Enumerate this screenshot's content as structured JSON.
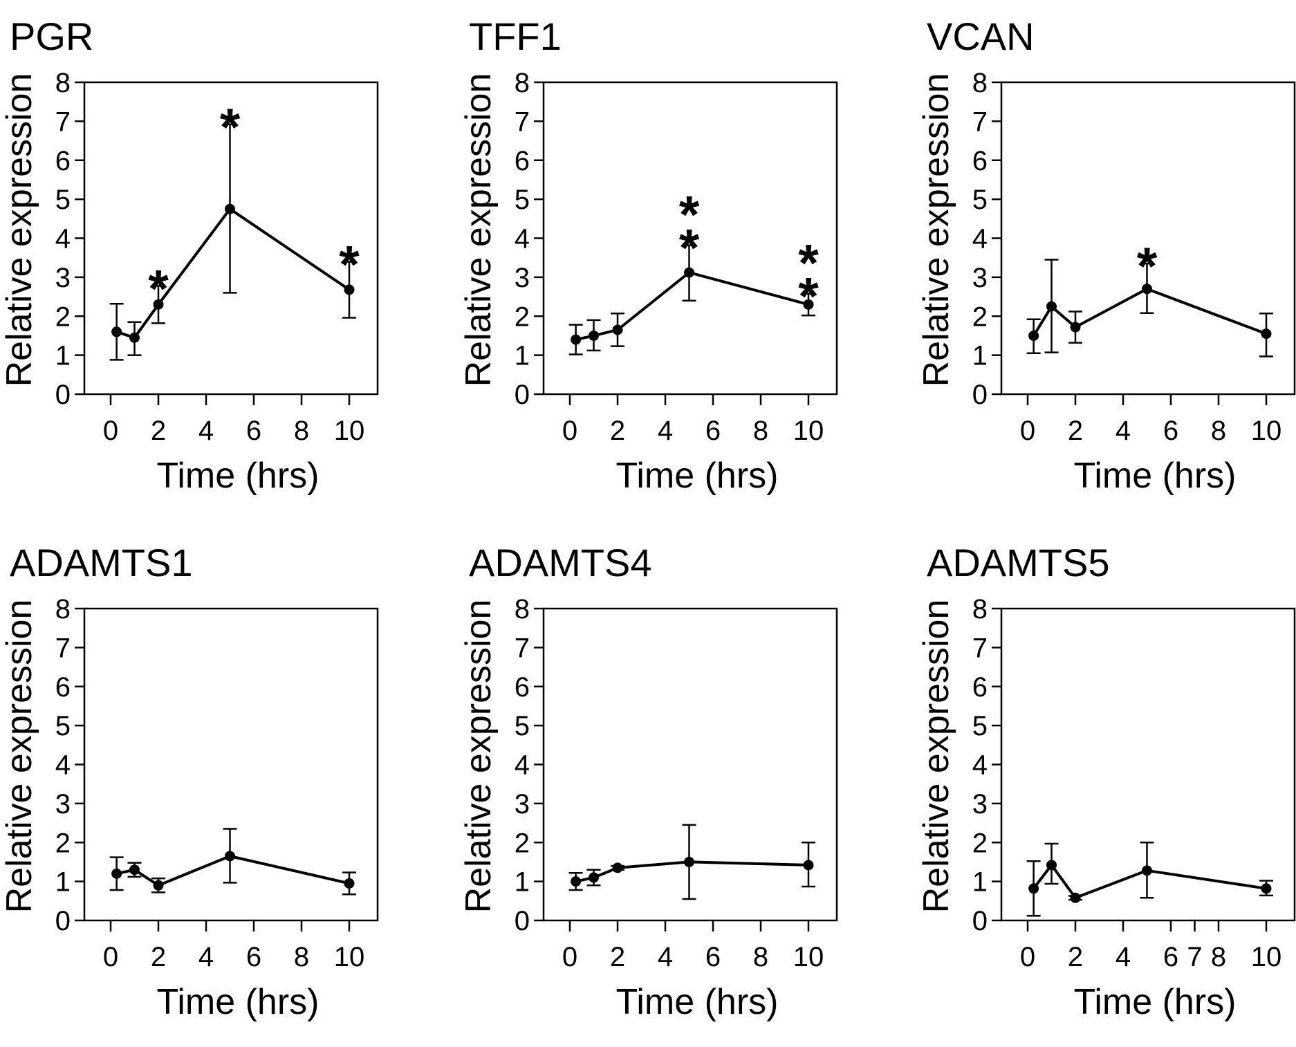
{
  "chart_data": [
    {
      "type": "line",
      "title": "PGR",
      "xlabel": "Time (hrs)",
      "ylabel": "Relative expression",
      "xlim": [
        -1,
        11
      ],
      "ylim": [
        0,
        8
      ],
      "xticks": [
        0,
        2,
        4,
        6,
        8,
        10
      ],
      "xtick_labels": [
        "0",
        "2",
        "4",
        "6",
        "8",
        "10"
      ],
      "yticks": [
        0,
        1,
        2,
        3,
        4,
        5,
        6,
        7,
        8
      ],
      "ytick_labels": [
        "0",
        "1",
        "2",
        "3",
        "4",
        "5",
        "6",
        "7",
        "8"
      ],
      "grid": false,
      "x": [
        0.25,
        1,
        2,
        5,
        10
      ],
      "values": [
        1.6,
        1.45,
        2.3,
        4.75,
        2.68
      ],
      "err_upper": [
        0.72,
        0.4,
        0.48,
        2.17,
        0.72
      ],
      "err_lower": [
        0.72,
        0.45,
        0.48,
        2.15,
        0.72
      ],
      "annotations": [
        {
          "x": 2,
          "text": "*",
          "stack": 1
        },
        {
          "x": 5,
          "text": "*",
          "stack": 1
        },
        {
          "x": 10,
          "text": "*",
          "stack": 1
        }
      ]
    },
    {
      "type": "line",
      "title": "TFF1",
      "xlabel": "Time (hrs)",
      "ylabel": "Relative expression",
      "xlim": [
        -1,
        11
      ],
      "ylim": [
        0,
        8
      ],
      "xticks": [
        0,
        2,
        4,
        6,
        8,
        10
      ],
      "xtick_labels": [
        "0",
        "2",
        "4",
        "6",
        "8",
        "10"
      ],
      "yticks": [
        0,
        1,
        2,
        3,
        4,
        5,
        6,
        7,
        8
      ],
      "ytick_labels": [
        "0",
        "1",
        "2",
        "3",
        "4",
        "5",
        "6",
        "7",
        "8"
      ],
      "grid": false,
      "x": [
        0.25,
        1,
        2,
        5,
        10
      ],
      "values": [
        1.4,
        1.5,
        1.65,
        3.12,
        2.3
      ],
      "err_upper": [
        0.38,
        0.4,
        0.42,
        0.7,
        0.28
      ],
      "err_lower": [
        0.38,
        0.38,
        0.42,
        0.72,
        0.28
      ],
      "annotations": [
        {
          "x": 5,
          "text": "*",
          "stack": 2
        },
        {
          "x": 10,
          "text": "*",
          "stack": 2
        }
      ]
    },
    {
      "type": "line",
      "title": "VCAN",
      "xlabel": "Time (hrs)",
      "ylabel": "Relative expression",
      "xlim": [
        -1,
        11
      ],
      "ylim": [
        0,
        8
      ],
      "xticks": [
        0,
        2,
        4,
        6,
        8,
        10
      ],
      "xtick_labels": [
        "0",
        "2",
        "4",
        "6",
        "8",
        "10"
      ],
      "yticks": [
        0,
        1,
        2,
        3,
        4,
        5,
        6,
        7,
        8
      ],
      "ytick_labels": [
        "0",
        "1",
        "2",
        "3",
        "4",
        "5",
        "6",
        "7",
        "8"
      ],
      "grid": false,
      "x": [
        0.25,
        1,
        2,
        5,
        10
      ],
      "values": [
        1.5,
        2.25,
        1.72,
        2.7,
        1.55
      ],
      "err_upper": [
        0.42,
        1.2,
        0.4,
        0.65,
        0.52
      ],
      "err_lower": [
        0.45,
        1.18,
        0.4,
        0.62,
        0.58
      ],
      "annotations": [
        {
          "x": 5,
          "text": "*",
          "stack": 1
        }
      ]
    },
    {
      "type": "line",
      "title": "ADAMTS1",
      "xlabel": "Time (hrs)",
      "ylabel": "Relative expression",
      "xlim": [
        -1,
        11
      ],
      "ylim": [
        0,
        8
      ],
      "xticks": [
        0,
        2,
        4,
        6,
        8,
        10
      ],
      "xtick_labels": [
        "0",
        "2",
        "4",
        "6",
        "8",
        "10"
      ],
      "yticks": [
        0,
        1,
        2,
        3,
        4,
        5,
        6,
        7,
        8
      ],
      "ytick_labels": [
        "0",
        "1",
        "2",
        "3",
        "4",
        "5",
        "6",
        "7",
        "8"
      ],
      "grid": false,
      "x": [
        0.25,
        1,
        2,
        5,
        10
      ],
      "values": [
        1.2,
        1.3,
        0.9,
        1.65,
        0.95
      ],
      "err_upper": [
        0.42,
        0.18,
        0.18,
        0.7,
        0.28
      ],
      "err_lower": [
        0.42,
        0.18,
        0.18,
        0.68,
        0.28
      ],
      "annotations": []
    },
    {
      "type": "line",
      "title": "ADAMTS4",
      "xlabel": "Time (hrs)",
      "ylabel": "Relative expression",
      "xlim": [
        -1,
        11
      ],
      "ylim": [
        0,
        8
      ],
      "xticks": [
        0,
        2,
        4,
        6,
        8,
        10
      ],
      "xtick_labels": [
        "0",
        "2",
        "4",
        "6",
        "8",
        "10"
      ],
      "yticks": [
        0,
        1,
        2,
        3,
        4,
        5,
        6,
        7,
        8
      ],
      "ytick_labels": [
        "0",
        "1",
        "2",
        "3",
        "4",
        "5",
        "6",
        "7",
        "8"
      ],
      "grid": false,
      "x": [
        0.25,
        1,
        2,
        5,
        10
      ],
      "values": [
        1.0,
        1.1,
        1.35,
        1.5,
        1.42
      ],
      "err_upper": [
        0.22,
        0.2,
        0.05,
        0.95,
        0.58
      ],
      "err_lower": [
        0.22,
        0.2,
        0.05,
        0.95,
        0.55
      ],
      "annotations": []
    },
    {
      "type": "line",
      "title": "ADAMTS5",
      "xlabel": "Time (hrs)",
      "ylabel": "Relative expression",
      "xlim": [
        -1,
        11
      ],
      "ylim": [
        0,
        8
      ],
      "xticks": [
        0,
        2,
        4,
        6,
        7,
        8,
        10
      ],
      "xtick_labels": [
        "0",
        "2",
        "4",
        "6",
        "7",
        "8",
        "10"
      ],
      "yticks": [
        0,
        1,
        2,
        3,
        4,
        5,
        6,
        7,
        8
      ],
      "ytick_labels": [
        "0",
        "1",
        "2",
        "3",
        "4",
        "5",
        "6",
        "7",
        "8"
      ],
      "grid": false,
      "x": [
        0.25,
        1,
        2,
        5,
        10
      ],
      "values": [
        0.82,
        1.42,
        0.58,
        1.28,
        0.82
      ],
      "err_upper": [
        0.7,
        0.55,
        0.05,
        0.72,
        0.2
      ],
      "err_lower": [
        0.7,
        0.48,
        0.05,
        0.7,
        0.18
      ],
      "annotations": []
    }
  ]
}
